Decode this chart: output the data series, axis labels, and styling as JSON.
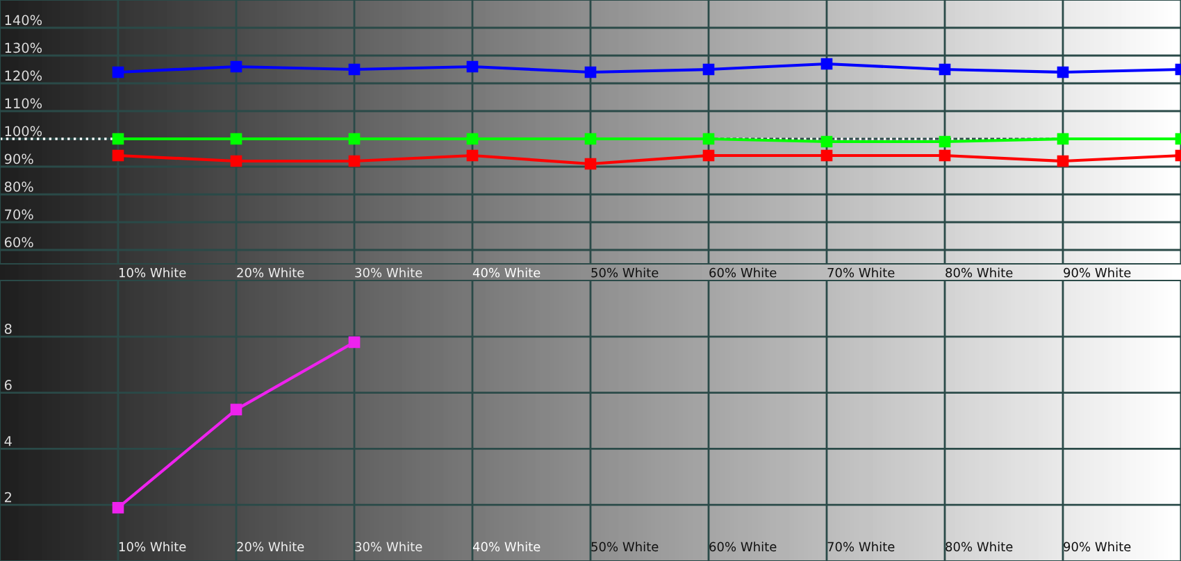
{
  "chart_data": [
    {
      "type": "line",
      "categories": [
        "10% White",
        "20% White",
        "30% White",
        "40% White",
        "50% White",
        "60% White",
        "70% White",
        "80% White",
        "90% White",
        null
      ],
      "series": [
        {
          "color": "#0000ff",
          "values": [
            124,
            126,
            125,
            126,
            124,
            125,
            127,
            125,
            124,
            125
          ]
        },
        {
          "color": "#00ff00",
          "values": [
            100,
            100,
            100,
            100,
            100,
            100,
            99,
            99,
            100,
            100
          ]
        },
        {
          "color": "#ff0000",
          "values": [
            94,
            92,
            92,
            94,
            91,
            94,
            94,
            94,
            92,
            94
          ]
        }
      ],
      "ylim": [
        55,
        150
      ],
      "yticks": [
        {
          "value": 60,
          "label": "60%"
        },
        {
          "value": 70,
          "label": "70%"
        },
        {
          "value": 80,
          "label": "80%"
        },
        {
          "value": 90,
          "label": "90%"
        },
        {
          "value": 100,
          "label": "100%"
        },
        {
          "value": 110,
          "label": "110%"
        },
        {
          "value": 120,
          "label": "120%"
        },
        {
          "value": 130,
          "label": "130%"
        },
        {
          "value": 140,
          "label": "140%"
        }
      ],
      "ref_lines": [
        {
          "axis": "y",
          "value": 100,
          "color": "#ffffff",
          "line_style": "dotted"
        }
      ],
      "grid": true,
      "marker": "square",
      "line_style": "solid"
    },
    {
      "type": "line",
      "categories": [
        "10% White",
        "20% White",
        "30% White",
        "40% White",
        "50% White",
        "60% White",
        "70% White",
        "80% White",
        "90% White",
        null
      ],
      "series": [
        {
          "color": "#ee22ee",
          "values": [
            1.9,
            5.4,
            7.8,
            null,
            null,
            null,
            null,
            null,
            null,
            null
          ]
        }
      ],
      "ylim": [
        0,
        10
      ],
      "yticks": [
        2,
        4,
        6,
        8
      ],
      "grid": true,
      "marker": "square",
      "line_style": "solid"
    }
  ]
}
